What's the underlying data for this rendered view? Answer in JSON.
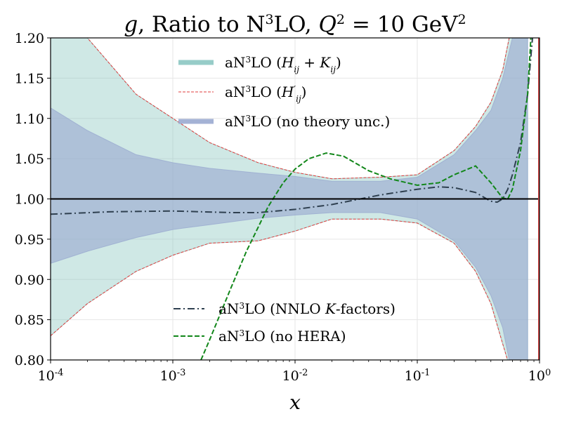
{
  "chart_data": {
    "type": "line",
    "title": {
      "parts": [
        {
          "text": "g",
          "italic": true
        },
        {
          "text": ", Ratio to N"
        },
        {
          "text": "3",
          "sup": true
        },
        {
          "text": "LO, "
        },
        {
          "text": "Q",
          "italic": true
        },
        {
          "text": "2",
          "sup": true
        },
        {
          "text": " = 10 GeV"
        },
        {
          "text": "2",
          "sup": true
        }
      ]
    },
    "xlabel": "x",
    "ylabel": "",
    "xscale": "log",
    "xlim": [
      0.0001,
      1
    ],
    "ylim": [
      0.8,
      1.2
    ],
    "grid": true,
    "x_tick_labels": [
      {
        "base": "10",
        "exp": "-4"
      },
      {
        "base": "10",
        "exp": "-3"
      },
      {
        "base": "10",
        "exp": "-2"
      },
      {
        "base": "10",
        "exp": "-1"
      },
      {
        "base": "10",
        "exp": "0"
      }
    ],
    "x_ticks": [
      0.0001,
      0.001,
      0.01,
      0.1,
      1
    ],
    "y_ticks": [
      0.8,
      0.85,
      0.9,
      0.95,
      1.0,
      1.05,
      1.1,
      1.15,
      1.2
    ],
    "y_tick_labels": [
      "0.80",
      "0.85",
      "0.90",
      "0.95",
      "1.00",
      "1.05",
      "1.10",
      "1.15",
      "1.20"
    ],
    "reference_line": {
      "y": 1.0,
      "color": "#000000"
    },
    "colors": {
      "hk_band": "#8cc7c2",
      "h_prime": "#e03c3c",
      "no_theory_band": "#9aaad0",
      "nnlo_k": "#2f4050",
      "no_hera": "#12871a",
      "right_edge": "#d04040"
    },
    "bands": [
      {
        "name_parts": [
          {
            "text": "aN"
          },
          {
            "text": "3",
            "sup": true
          },
          {
            "text": "LO ("
          },
          {
            "text": "H",
            "italic": true
          },
          {
            "text": "ij",
            "sub": true,
            "italic": true
          },
          {
            "text": " + "
          },
          {
            "text": "K",
            "italic": true
          },
          {
            "text": "ij",
            "sub": true,
            "italic": true
          },
          {
            "text": ")"
          }
        ],
        "key": "hk_band",
        "x": [
          0.0001,
          0.0002,
          0.0005,
          0.001,
          0.002,
          0.005,
          0.01,
          0.02,
          0.05,
          0.1,
          0.2,
          0.3,
          0.4,
          0.5,
          0.6,
          0.7,
          0.8
        ],
        "upper": [
          1.22,
          1.2,
          1.13,
          1.1,
          1.07,
          1.045,
          1.033,
          1.025,
          1.027,
          1.03,
          1.06,
          1.09,
          1.12,
          1.16,
          1.22,
          1.22,
          1.22
        ],
        "lower": [
          0.83,
          0.87,
          0.91,
          0.93,
          0.945,
          0.948,
          0.96,
          0.975,
          0.975,
          0.97,
          0.945,
          0.91,
          0.87,
          0.82,
          0.78,
          0.78,
          0.78
        ]
      },
      {
        "name_parts": [
          {
            "text": "aN"
          },
          {
            "text": "3",
            "sup": true
          },
          {
            "text": "LO (no theory unc.)"
          }
        ],
        "key": "no_theory_band",
        "x": [
          0.0001,
          0.0002,
          0.0005,
          0.001,
          0.002,
          0.005,
          0.01,
          0.02,
          0.05,
          0.1,
          0.2,
          0.3,
          0.4,
          0.5,
          0.6,
          0.7,
          0.8
        ],
        "upper": [
          1.113,
          1.085,
          1.055,
          1.045,
          1.038,
          1.032,
          1.028,
          1.022,
          1.022,
          1.027,
          1.055,
          1.085,
          1.11,
          1.15,
          1.2,
          1.22,
          1.22
        ],
        "lower": [
          0.92,
          0.935,
          0.952,
          0.962,
          0.968,
          0.976,
          0.98,
          0.983,
          0.983,
          0.975,
          0.948,
          0.915,
          0.88,
          0.84,
          0.78,
          0.78,
          0.78
        ]
      }
    ],
    "series": [
      {
        "name_parts": [
          {
            "text": "aN"
          },
          {
            "text": "3",
            "sup": true
          },
          {
            "text": "LO ("
          },
          {
            "text": "H",
            "italic": true
          },
          {
            "text": "′",
            "sup": true
          },
          {
            "text": "ij",
            "sub": true,
            "italic": true
          },
          {
            "text": ")"
          }
        ],
        "key": "h_prime",
        "style": "dashed-thin",
        "x": [
          0.0001,
          0.0002,
          0.0005,
          0.001,
          0.002,
          0.005,
          0.01,
          0.02,
          0.05,
          0.1,
          0.2,
          0.3,
          0.4,
          0.5,
          0.6,
          0.7
        ],
        "upper": [
          1.22,
          1.2,
          1.13,
          1.1,
          1.07,
          1.045,
          1.033,
          1.025,
          1.027,
          1.03,
          1.06,
          1.09,
          1.12,
          1.16,
          1.22,
          1.22
        ],
        "lower": [
          0.83,
          0.87,
          0.91,
          0.93,
          0.945,
          0.948,
          0.96,
          0.975,
          0.975,
          0.97,
          0.945,
          0.91,
          0.87,
          0.82,
          0.78,
          0.78
        ]
      },
      {
        "name_parts": [
          {
            "text": "aN"
          },
          {
            "text": "3",
            "sup": true
          },
          {
            "text": "LO (NNLO "
          },
          {
            "text": "K",
            "italic": true
          },
          {
            "text": "-factors)"
          }
        ],
        "key": "nnlo_k",
        "style": "dashdot",
        "x": [
          0.0001,
          0.0003,
          0.001,
          0.003,
          0.005,
          0.01,
          0.02,
          0.05,
          0.1,
          0.15,
          0.2,
          0.3,
          0.4,
          0.45,
          0.5,
          0.55,
          0.6,
          0.7,
          0.8,
          0.9
        ],
        "y": [
          0.981,
          0.984,
          0.985,
          0.983,
          0.983,
          0.987,
          0.993,
          1.005,
          1.012,
          1.015,
          1.014,
          1.008,
          0.997,
          0.996,
          1.0,
          1.012,
          1.03,
          1.07,
          1.13,
          1.22
        ]
      },
      {
        "name_parts": [
          {
            "text": "aN"
          },
          {
            "text": "3",
            "sup": true
          },
          {
            "text": "LO (no HERA)"
          }
        ],
        "key": "no_hera",
        "style": "dashed",
        "x": [
          0.0017,
          0.002,
          0.003,
          0.004,
          0.005,
          0.006,
          0.008,
          0.01,
          0.013,
          0.018,
          0.025,
          0.04,
          0.06,
          0.1,
          0.15,
          0.2,
          0.3,
          0.4,
          0.5,
          0.55,
          0.6,
          0.7,
          0.8,
          0.85
        ],
        "y": [
          0.8,
          0.825,
          0.89,
          0.935,
          0.965,
          0.99,
          1.02,
          1.037,
          1.05,
          1.057,
          1.053,
          1.035,
          1.025,
          1.017,
          1.02,
          1.03,
          1.041,
          1.02,
          1.001,
          1.0,
          1.012,
          1.06,
          1.13,
          1.2
        ]
      }
    ]
  }
}
